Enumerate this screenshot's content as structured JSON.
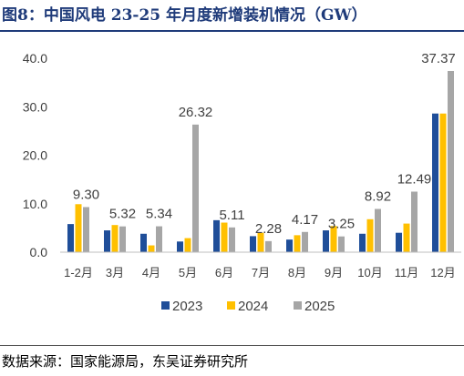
{
  "title": "图8：中国风电 23-25 年月度新增装机情况（GW）",
  "source": "数据来源：国家能源局，东吴证券研究所",
  "chart_data": {
    "type": "bar",
    "title": "中国风电 23-25 年月度新增装机情况（GW）",
    "xlabel": "",
    "ylabel": "",
    "ylim": [
      0,
      40
    ],
    "yticks": [
      "0.0",
      "10.0",
      "20.0",
      "30.0",
      "40.0"
    ],
    "grid": false,
    "legend_position": "bottom",
    "categories": [
      "1-2月",
      "3月",
      "4月",
      "5月",
      "6月",
      "7月",
      "8月",
      "9月",
      "10月",
      "11月",
      "12月"
    ],
    "series": [
      {
        "name": "2023",
        "color": "#1f4e99",
        "values": [
          5.8,
          4.5,
          3.8,
          2.2,
          6.6,
          3.3,
          2.6,
          4.5,
          3.8,
          4.0,
          28.6
        ]
      },
      {
        "name": "2024",
        "color": "#ffc000",
        "values": [
          9.9,
          5.6,
          1.4,
          2.9,
          6.1,
          4.0,
          3.5,
          5.4,
          6.8,
          5.9,
          28.6
        ]
      },
      {
        "name": "2025",
        "color": "#a6a6a6",
        "values": [
          9.3,
          5.32,
          5.34,
          26.32,
          5.11,
          2.28,
          4.17,
          3.25,
          8.92,
          12.49,
          37.37
        ]
      }
    ],
    "data_labels": [
      "9.30",
      "5.32",
      "5.34",
      "26.32",
      "5.11",
      "2.28",
      "4.17",
      "3.25",
      "8.92",
      "12.49",
      "37.37"
    ]
  }
}
